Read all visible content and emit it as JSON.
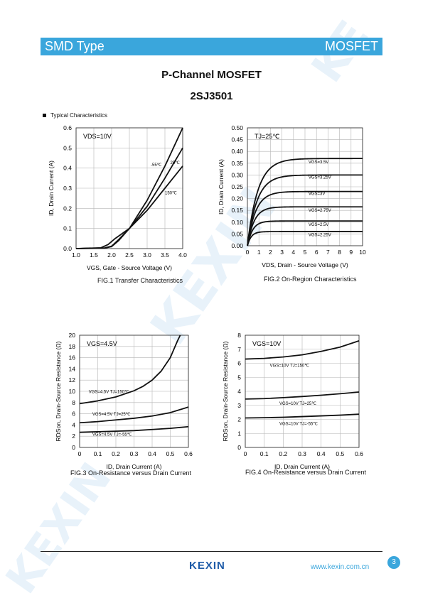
{
  "header": {
    "left": "SMD Type",
    "right": "MOSFET"
  },
  "title": "P-Channel MOSFET",
  "part_number": "2SJ3501",
  "section_title": "Typical  Characteristics",
  "footer": {
    "logo": "KEXIN",
    "website": "www.kexin.com.cn",
    "page": "3"
  },
  "colors": {
    "accent": "#3aa6dc",
    "logo": "#1d5ba8",
    "watermark": "#e8f2fa"
  },
  "chart_data": [
    {
      "id": "fig1",
      "type": "line",
      "caption": "FIG.1 Transfer Characteristics",
      "xlabel": "VGS, Gate - Source Voltage (V)",
      "ylabel": "ID, Drain Current (A)",
      "xlim": [
        1.0,
        4.0
      ],
      "ylim": [
        0,
        0.6
      ],
      "xticks": [
        "1.0",
        "1.5",
        "2.0",
        "2.5",
        "3.0",
        "3.5",
        "4.0"
      ],
      "yticks": [
        "0.0",
        "0.1",
        "0.2",
        "0.3",
        "0.4",
        "0.5",
        "0.6"
      ],
      "condition": "VDS=10V",
      "series": [
        {
          "name": "-55℃",
          "x": [
            1.0,
            1.8,
            2.0,
            2.2,
            2.5,
            3.0,
            3.5,
            4.0
          ],
          "y": [
            0,
            0.002,
            0.01,
            0.04,
            0.1,
            0.24,
            0.41,
            0.6
          ]
        },
        {
          "name": "25℃",
          "x": [
            1.0,
            1.8,
            2.0,
            2.2,
            2.5,
            3.0,
            3.5,
            4.0
          ],
          "y": [
            0,
            0.003,
            0.012,
            0.045,
            0.1,
            0.21,
            0.35,
            0.5
          ]
        },
        {
          "name": "150℃",
          "x": [
            1.0,
            1.7,
            1.9,
            2.1,
            2.5,
            3.0,
            3.5,
            4.0
          ],
          "y": [
            0,
            0.004,
            0.02,
            0.05,
            0.1,
            0.19,
            0.3,
            0.41
          ]
        }
      ],
      "labels": [
        {
          "text": "-55℃",
          "x": 3.1,
          "y": 0.41
        },
        {
          "text": "25℃",
          "x": 3.65,
          "y": 0.42
        },
        {
          "text": "150℃",
          "x": 3.5,
          "y": 0.27
        }
      ],
      "grid": true
    },
    {
      "id": "fig2",
      "type": "line",
      "caption": "FIG.2 On-Region Characteristics",
      "xlabel": "VDS, Drain  - Source Voltage (V)",
      "ylabel": "ID, Drain Current (A)",
      "xlim": [
        0,
        10
      ],
      "ylim": [
        0,
        0.5
      ],
      "xticks": [
        "0",
        "1",
        "2",
        "3",
        "4",
        "5",
        "6",
        "7",
        "8",
        "9",
        "10"
      ],
      "yticks": [
        "0.00",
        "0.05",
        "0.10",
        "0.15",
        "0.20",
        "0.25",
        "0.30",
        "0.35",
        "0.40",
        "0.45",
        "0.50"
      ],
      "condition": "TJ=25℃",
      "series": [
        {
          "name": "VGS=3.5V",
          "sat": 0.37,
          "k": 1.1
        },
        {
          "name": "VGS=3.25V",
          "sat": 0.3,
          "k": 1.2
        },
        {
          "name": "VGS=3V",
          "sat": 0.23,
          "k": 1.4
        },
        {
          "name": "VGS=2.75V",
          "sat": 0.165,
          "k": 1.7
        },
        {
          "name": "VGS=2.5V",
          "sat": 0.105,
          "k": 2.2
        },
        {
          "name": "VGS=2.25V",
          "sat": 0.06,
          "k": 3.0
        }
      ],
      "labels": [
        {
          "text": "VGS=3.5V",
          "x": 5.3,
          "y": 0.35
        },
        {
          "text": "VGS=3.25V",
          "x": 5.3,
          "y": 0.285
        },
        {
          "text": "VGS=3V",
          "x": 5.3,
          "y": 0.215
        },
        {
          "text": "VGS=2.75V",
          "x": 5.3,
          "y": 0.145
        },
        {
          "text": "VGS=2.5V",
          "x": 5.3,
          "y": 0.085
        },
        {
          "text": "VGS=2.25V",
          "x": 5.3,
          "y": 0.04
        }
      ],
      "grid": true
    },
    {
      "id": "fig3",
      "type": "line",
      "caption": "FIG.3 On-Resistance versus Drain Current",
      "xlabel": "ID, Drain Current (A)",
      "ylabel": "RDSon, Drain-Source Resistance (Ω)",
      "xlim": [
        0,
        0.6
      ],
      "ylim": [
        0,
        20
      ],
      "xticks": [
        "0",
        "0.1",
        "0.2",
        "0.3",
        "0.4",
        "0.5",
        "0.6"
      ],
      "yticks": [
        "0",
        "2",
        "4",
        "6",
        "8",
        "10",
        "12",
        "14",
        "16",
        "18",
        "20"
      ],
      "condition": "VGS=4.5V",
      "series": [
        {
          "name": "VGS=4.5V TJ=150℃",
          "x": [
            0,
            0.1,
            0.2,
            0.3,
            0.35,
            0.4,
            0.45,
            0.5,
            0.52,
            0.54,
            0.555
          ],
          "y": [
            7.8,
            8.3,
            9.0,
            10.1,
            10.9,
            12.0,
            13.6,
            16.0,
            17.5,
            19.0,
            20
          ]
        },
        {
          "name": "VGS=4.5V TJ=25℃",
          "x": [
            0,
            0.1,
            0.2,
            0.3,
            0.4,
            0.5,
            0.6
          ],
          "y": [
            4.4,
            4.6,
            4.9,
            5.2,
            5.6,
            6.2,
            7.2
          ]
        },
        {
          "name": "VGS=4.5V TJ=-55℃",
          "x": [
            0,
            0.1,
            0.2,
            0.3,
            0.4,
            0.5,
            0.6
          ],
          "y": [
            2.7,
            2.8,
            2.9,
            3.0,
            3.2,
            3.4,
            3.7
          ]
        }
      ],
      "labels": [
        {
          "text": "VGS=4.5V TJ=150℃",
          "x": 0.05,
          "y": 9.7
        },
        {
          "text": "VGS=4.5V TJ=25℃",
          "x": 0.07,
          "y": 5.7
        },
        {
          "text": "VGS=4.5V TJ=-55℃",
          "x": 0.07,
          "y": 2.1
        }
      ],
      "grid": true
    },
    {
      "id": "fig4",
      "type": "line",
      "caption": "FIG.4 On-Resistance versus Drain Current",
      "xlabel": "ID, Drain Current (A)",
      "ylabel": "RDSon, Drain-Source Resistance (Ω)",
      "xlim": [
        0,
        0.6
      ],
      "ylim": [
        0,
        8
      ],
      "xticks": [
        "0",
        "0.1",
        "0.2",
        "0.3",
        "0.4",
        "0.5",
        "0.6"
      ],
      "yticks": [
        "0",
        "1",
        "2",
        "3",
        "4",
        "5",
        "6",
        "7",
        "8"
      ],
      "condition": "VGS=10V",
      "series": [
        {
          "name": "VGS=10V TJ=150℃",
          "x": [
            0,
            0.1,
            0.2,
            0.3,
            0.4,
            0.5,
            0.6
          ],
          "y": [
            6.3,
            6.35,
            6.45,
            6.6,
            6.85,
            7.15,
            7.6
          ]
        },
        {
          "name": "VGS=10V TJ=25℃",
          "x": [
            0,
            0.1,
            0.2,
            0.3,
            0.4,
            0.5,
            0.6
          ],
          "y": [
            3.45,
            3.48,
            3.55,
            3.63,
            3.72,
            3.83,
            3.95
          ]
        },
        {
          "name": "VGS=10V TJ=-55℃",
          "x": [
            0,
            0.1,
            0.2,
            0.3,
            0.4,
            0.5,
            0.6
          ],
          "y": [
            2.1,
            2.12,
            2.15,
            2.2,
            2.25,
            2.3,
            2.37
          ]
        }
      ],
      "labels": [
        {
          "text": "VGS=10V TJ=150℃",
          "x": 0.13,
          "y": 5.75
        },
        {
          "text": "VGS=10V TJ=25℃",
          "x": 0.18,
          "y": 3.05
        },
        {
          "text": "VGS=10V TJ=-55℃",
          "x": 0.18,
          "y": 1.6
        }
      ],
      "grid": true
    }
  ]
}
